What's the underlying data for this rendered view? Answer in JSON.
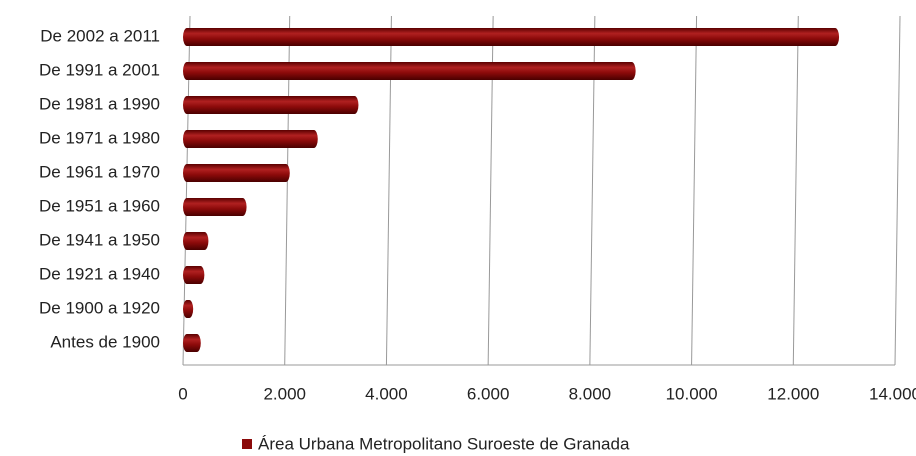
{
  "chart_data": {
    "type": "hbar",
    "categories": [
      "De 2002 a 2011",
      "De 1991 a 2001",
      "De 1981 a 1990",
      "De 1971 a 1980",
      "De 1961 a 1970",
      "De 1951 a 1960",
      "De 1941 a 1950",
      "De 1921 a 1940",
      "De 1900 a 1920",
      "Antes de 1900"
    ],
    "series": [
      {
        "name": "Área Urbana Metropolitano Suroeste de Granada",
        "color": "#8b0a0a",
        "values": [
          12900,
          8900,
          3450,
          2650,
          2100,
          1250,
          500,
          420,
          200,
          350
        ]
      }
    ],
    "xlim": [
      0,
      14000
    ],
    "xticks": [
      0,
      {
        "value": 2000,
        "label": "2.000"
      },
      {
        "value": 4000,
        "label": "4.000"
      },
      {
        "value": 6000,
        "label": "6.000"
      },
      {
        "value": 8000,
        "label": "8.000"
      },
      {
        "value": 10000,
        "label": "10.000"
      },
      {
        "value": 12000,
        "label": "12.000"
      },
      {
        "value": 14000,
        "label": "14.000"
      }
    ],
    "grid": true,
    "legend": "bottom"
  }
}
